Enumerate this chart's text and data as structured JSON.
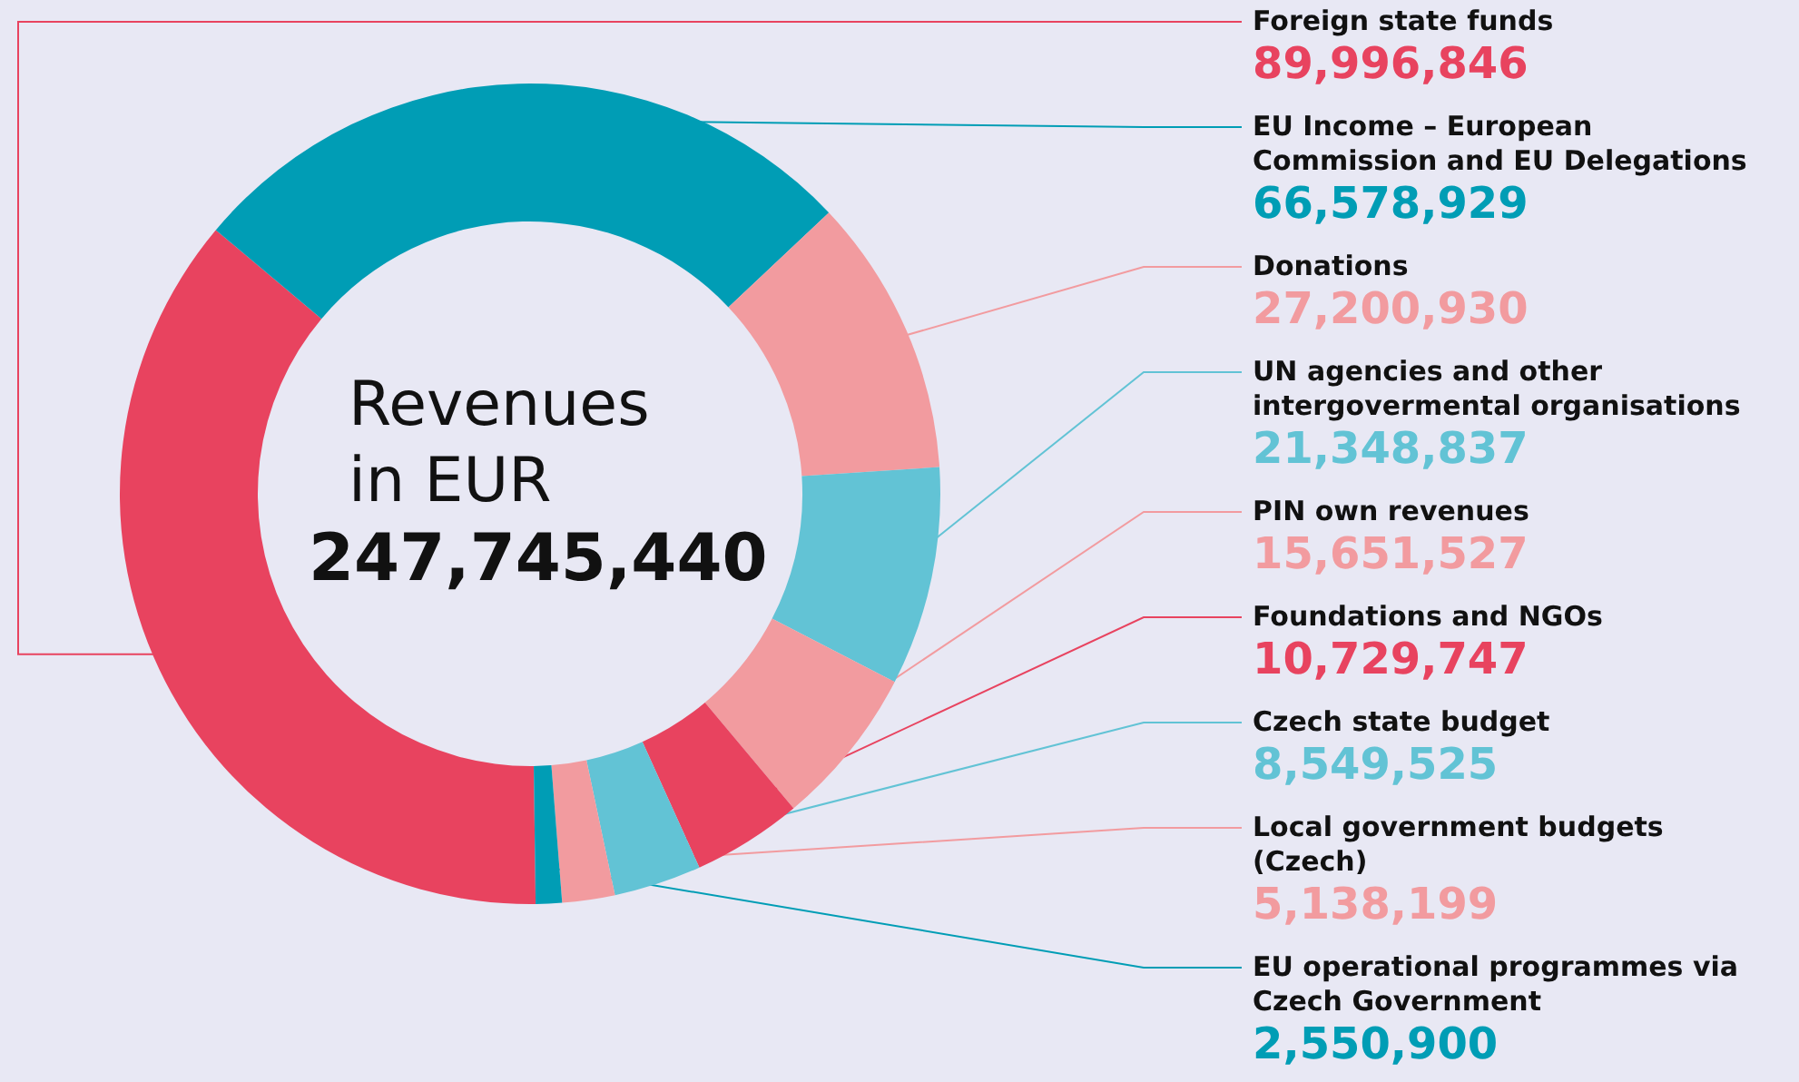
{
  "chart_data": {
    "type": "donut",
    "title": "Revenues in EUR",
    "annotations": [
      "247,745,440"
    ],
    "categories": [
      "Foreign state funds",
      "EU Income – European Commission and EU Delegations",
      "Donations",
      "UN agencies and other intergovermental organisations",
      "PIN own revenues",
      "Foundations and NGOs",
      "Czech state budget",
      "Local government budgets (Czech)",
      "EU operational programmes via Czech Government"
    ],
    "values": [
      89996846,
      66578929,
      27200930,
      21348837,
      15651527,
      10729747,
      8549525,
      5138199,
      2550900
    ],
    "colors": [
      "#e8435f",
      "#009db5",
      "#f29b9f",
      "#62c3d5",
      "#f29b9f",
      "#e8435f",
      "#62c3d5",
      "#f29b9f",
      "#009db5"
    ],
    "value_labels": [
      "89,996,846",
      "66,578,929",
      "27,200,930",
      "21,348,837",
      "15,651,527",
      "10,729,747",
      "8,549,525",
      "5,138,199",
      "2,550,900"
    ],
    "legend": false
  }
}
